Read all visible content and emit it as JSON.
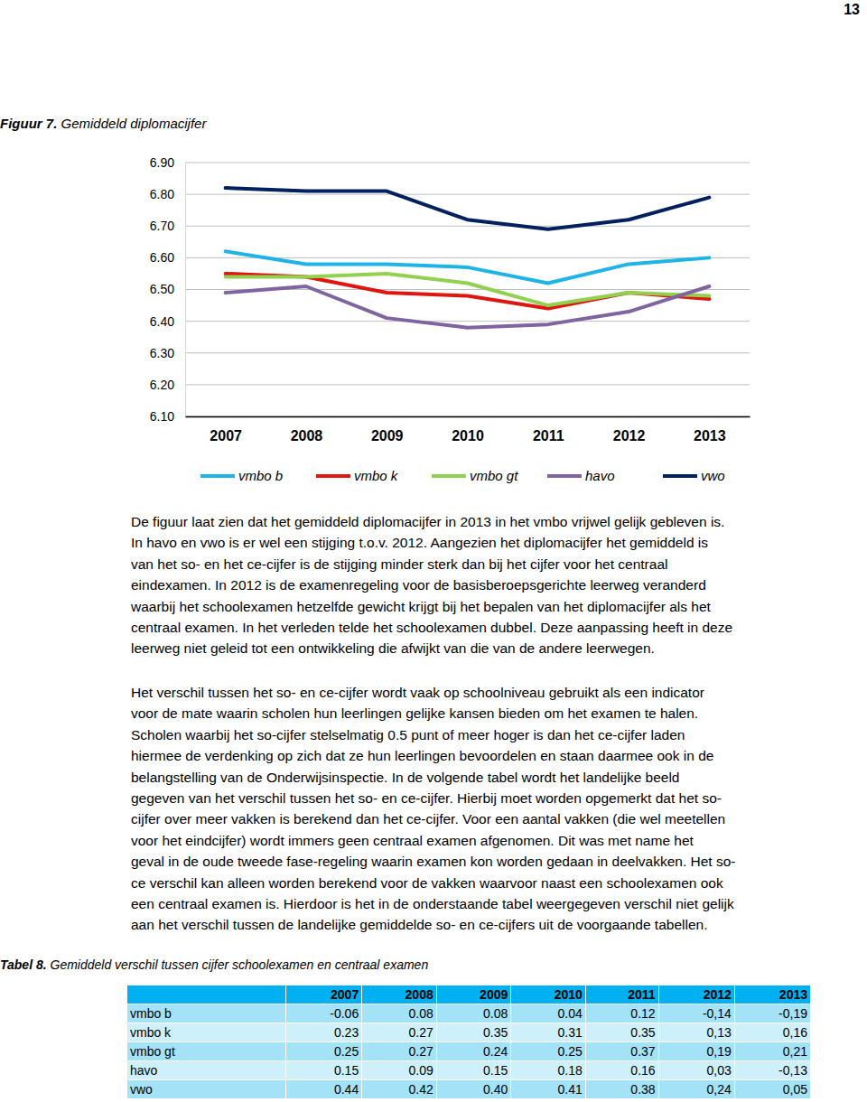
{
  "page_number": "13",
  "figure": {
    "label": "Figuur 7.",
    "caption": "Gemiddeld diplomacijfer"
  },
  "chart_data": {
    "type": "line",
    "categories": [
      "2007",
      "2008",
      "2009",
      "2010",
      "2011",
      "2012",
      "2013"
    ],
    "series": [
      {
        "name": "vmbo b",
        "color": "#1fb4e8",
        "values": [
          6.62,
          6.58,
          6.58,
          6.57,
          6.52,
          6.58,
          6.6
        ]
      },
      {
        "name": "vmbo k",
        "color": "#e0150f",
        "values": [
          6.55,
          6.54,
          6.49,
          6.48,
          6.44,
          6.49,
          6.47
        ]
      },
      {
        "name": "vmbo gt",
        "color": "#92d050",
        "values": [
          6.54,
          6.54,
          6.55,
          6.52,
          6.45,
          6.49,
          6.48
        ]
      },
      {
        "name": "havo",
        "color": "#8064a2",
        "values": [
          6.49,
          6.51,
          6.41,
          6.38,
          6.39,
          6.43,
          6.51
        ]
      },
      {
        "name": "vwo",
        "color": "#002060",
        "values": [
          6.82,
          6.81,
          6.81,
          6.72,
          6.69,
          6.72,
          6.79
        ]
      }
    ],
    "ylim": [
      6.1,
      6.9
    ],
    "yticks": [
      {
        "value": 6.1,
        "label": "6.10"
      },
      {
        "value": 6.2,
        "label": "6.20"
      },
      {
        "value": 6.3,
        "label": "6.30"
      },
      {
        "value": 6.4,
        "label": "6.40"
      },
      {
        "value": 6.5,
        "label": "6.50"
      },
      {
        "value": 6.6,
        "label": "6.60"
      },
      {
        "value": 6.7,
        "label": "6.70"
      },
      {
        "value": 6.8,
        "label": "6.80"
      },
      {
        "value": 6.9,
        "label": "6.90"
      }
    ],
    "grid": true,
    "legend": "bottom"
  },
  "paragraphs": [
    {
      "lines": [
        "De figuur laat zien dat het gemiddeld diplomacijfer in 2013 in het vmbo vrijwel gelijk gebleven is.",
        "In havo en vwo is er wel een stijging t.o.v. 2012. Aangezien het diplomacijfer het gemiddeld is",
        "van het so- en het ce-cijfer is de stijging minder sterk dan bij het cijfer voor het centraal",
        "eindexamen. In 2012 is de examenregeling voor de basisberoepsgerichte leerweg veranderd",
        "waarbij het schoolexamen hetzelfde gewicht krijgt bij het bepalen van het diplomacijfer als het",
        "centraal examen. In het verleden telde het schoolexamen dubbel. Deze aanpassing heeft in deze",
        "leerweg niet geleid tot een ontwikkeling die afwijkt van die van de andere leerwegen."
      ]
    },
    {
      "lines": [
        "Het verschil tussen het so- en ce-cijfer wordt vaak op schoolniveau gebruikt als een indicator",
        "voor de mate waarin scholen hun leerlingen gelijke kansen bieden om het examen te halen.",
        "Scholen waarbij het so-cijfer stelselmatig 0.5 punt of meer hoger is dan het ce-cijfer laden",
        "hiermee de verdenking op zich dat ze hun leerlingen bevoordelen en staan daarmee ook in de",
        "belangstelling van de Onderwijsinspectie. In de volgende tabel wordt het landelijke beeld",
        "gegeven van het verschil tussen het so- en ce-cijfer. Hierbij moet worden opgemerkt dat het so-",
        "cijfer over meer vakken is berekend dan het ce-cijfer. Voor een aantal vakken (die wel meetellen",
        "voor het eindcijfer) wordt immers geen centraal examen afgenomen. Dit was met name het",
        "geval in de oude tweede fase-regeling waarin examen kon worden gedaan in deelvakken. Het so-",
        "ce verschil kan alleen worden berekend voor de vakken waarvoor naast een schoolexamen ook",
        "een centraal examen is. Hierdoor is het in de onderstaande tabel weergegeven verschil niet gelijk",
        "aan het verschil tussen de landelijke gemiddelde so- en ce-cijfers uit de voorgaande tabellen."
      ]
    }
  ],
  "table_caption": {
    "label": "Tabel 8.",
    "caption": "Gemiddeld verschil tussen cijfer schoolexamen en centraal examen"
  },
  "table": {
    "columns": [
      "2007",
      "2008",
      "2009",
      "2010",
      "2011",
      "2012",
      "2013"
    ],
    "rows": [
      {
        "label": "vmbo b",
        "cells": [
          "-0.06",
          "0.08",
          "0.08",
          "0.04",
          "0.12",
          "-0,14",
          "-0,19"
        ]
      },
      {
        "label": "vmbo k",
        "cells": [
          "0.23",
          "0.27",
          "0.35",
          "0.31",
          "0.35",
          "0,13",
          "0,16"
        ]
      },
      {
        "label": "vmbo gt",
        "cells": [
          "0.25",
          "0.27",
          "0.24",
          "0.25",
          "0.37",
          "0,19",
          "0,21"
        ]
      },
      {
        "label": "havo",
        "cells": [
          "0.15",
          "0.09",
          "0.15",
          "0.18",
          "0.16",
          "0,03",
          "-0,13"
        ]
      },
      {
        "label": "vwo",
        "cells": [
          "0.44",
          "0.42",
          "0.40",
          "0.41",
          "0.38",
          "0,24",
          "0,05"
        ]
      }
    ]
  }
}
